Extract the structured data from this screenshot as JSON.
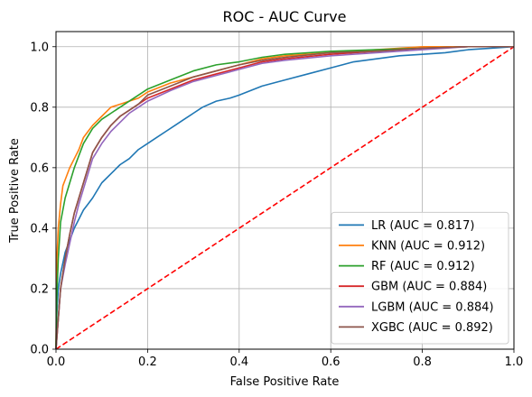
{
  "chart_data": {
    "type": "line",
    "title": "ROC - AUC Curve",
    "xlabel": "False Positive Rate",
    "ylabel": "True Positive Rate",
    "xlim": [
      0.0,
      1.0
    ],
    "ylim": [
      0.0,
      1.05
    ],
    "xticks": [
      0.0,
      0.2,
      0.4,
      0.6,
      0.8,
      1.0
    ],
    "yticks": [
      0.0,
      0.2,
      0.4,
      0.6,
      0.8,
      1.0
    ],
    "tick_labels_x": [
      "0.0",
      "0.2",
      "0.4",
      "0.6",
      "0.8",
      "1.0"
    ],
    "tick_labels_y": [
      "0.0",
      "0.2",
      "0.4",
      "0.6",
      "0.8",
      "1.0"
    ],
    "grid": true,
    "legend_position": "lower-right",
    "diagonal": {
      "color": "#ff0000",
      "style": "dashed",
      "x": [
        0,
        1
      ],
      "y": [
        0,
        1
      ]
    },
    "series": [
      {
        "name": "LR (AUC = 0.817)",
        "color": "#1f77b4",
        "x": [
          0,
          0.002,
          0.005,
          0.01,
          0.02,
          0.03,
          0.04,
          0.05,
          0.06,
          0.07,
          0.08,
          0.1,
          0.12,
          0.14,
          0.16,
          0.18,
          0.2,
          0.22,
          0.24,
          0.26,
          0.28,
          0.3,
          0.32,
          0.35,
          0.38,
          0.4,
          0.45,
          0.5,
          0.55,
          0.6,
          0.65,
          0.7,
          0.75,
          0.8,
          0.85,
          0.9,
          0.95,
          1.0
        ],
        "y": [
          0,
          0.12,
          0.2,
          0.25,
          0.32,
          0.36,
          0.4,
          0.43,
          0.46,
          0.48,
          0.5,
          0.55,
          0.58,
          0.61,
          0.63,
          0.66,
          0.68,
          0.7,
          0.72,
          0.74,
          0.76,
          0.78,
          0.8,
          0.82,
          0.83,
          0.84,
          0.87,
          0.89,
          0.91,
          0.93,
          0.95,
          0.96,
          0.97,
          0.975,
          0.98,
          0.99,
          0.995,
          1.0
        ]
      },
      {
        "name": "KNN (AUC = 0.912)",
        "color": "#ff7f0e",
        "x": [
          0,
          0.002,
          0.005,
          0.01,
          0.015,
          0.02,
          0.03,
          0.04,
          0.05,
          0.06,
          0.07,
          0.08,
          0.1,
          0.12,
          0.14,
          0.16,
          0.18,
          0.2,
          0.25,
          0.3,
          0.35,
          0.4,
          0.45,
          0.5,
          0.6,
          0.7,
          0.8,
          0.9,
          1.0
        ],
        "y": [
          0,
          0.3,
          0.4,
          0.48,
          0.54,
          0.56,
          0.6,
          0.63,
          0.66,
          0.7,
          0.72,
          0.74,
          0.77,
          0.8,
          0.81,
          0.82,
          0.83,
          0.85,
          0.88,
          0.9,
          0.92,
          0.94,
          0.96,
          0.97,
          0.98,
          0.99,
          1.0,
          1.0,
          1.0
        ]
      },
      {
        "name": "RF (AUC = 0.912)",
        "color": "#2ca02c",
        "x": [
          0,
          0.002,
          0.005,
          0.01,
          0.02,
          0.03,
          0.04,
          0.05,
          0.06,
          0.08,
          0.1,
          0.12,
          0.14,
          0.16,
          0.18,
          0.2,
          0.25,
          0.3,
          0.35,
          0.4,
          0.45,
          0.5,
          0.6,
          0.7,
          0.8,
          0.9,
          1.0
        ],
        "y": [
          0,
          0.18,
          0.3,
          0.42,
          0.5,
          0.55,
          0.6,
          0.64,
          0.68,
          0.73,
          0.76,
          0.78,
          0.8,
          0.82,
          0.84,
          0.86,
          0.89,
          0.92,
          0.94,
          0.95,
          0.965,
          0.975,
          0.985,
          0.99,
          0.995,
          1.0,
          1.0
        ]
      },
      {
        "name": "GBM (AUC = 0.884)",
        "color": "#d62728",
        "x": [
          0,
          0.005,
          0.01,
          0.02,
          0.03,
          0.04,
          0.05,
          0.06,
          0.07,
          0.08,
          0.1,
          0.12,
          0.14,
          0.16,
          0.18,
          0.2,
          0.25,
          0.3,
          0.35,
          0.4,
          0.45,
          0.5,
          0.6,
          0.7,
          0.8,
          0.9,
          1.0
        ],
        "y": [
          0,
          0.1,
          0.2,
          0.3,
          0.38,
          0.45,
          0.5,
          0.55,
          0.6,
          0.65,
          0.7,
          0.74,
          0.77,
          0.79,
          0.81,
          0.83,
          0.86,
          0.89,
          0.91,
          0.93,
          0.95,
          0.96,
          0.975,
          0.985,
          0.995,
          1.0,
          1.0
        ]
      },
      {
        "name": "LGBM (AUC = 0.884)",
        "color": "#9467bd",
        "x": [
          0,
          0.005,
          0.01,
          0.02,
          0.03,
          0.04,
          0.05,
          0.06,
          0.07,
          0.08,
          0.1,
          0.12,
          0.14,
          0.16,
          0.18,
          0.2,
          0.25,
          0.3,
          0.35,
          0.4,
          0.45,
          0.5,
          0.6,
          0.7,
          0.8,
          0.9,
          1.0
        ],
        "y": [
          0,
          0.1,
          0.2,
          0.28,
          0.35,
          0.42,
          0.48,
          0.53,
          0.58,
          0.63,
          0.68,
          0.72,
          0.75,
          0.78,
          0.8,
          0.82,
          0.855,
          0.885,
          0.905,
          0.925,
          0.945,
          0.955,
          0.97,
          0.98,
          0.99,
          1.0,
          1.0
        ]
      },
      {
        "name": "XGBC (AUC = 0.892)",
        "color": "#8c564b",
        "x": [
          0,
          0.005,
          0.01,
          0.02,
          0.03,
          0.04,
          0.05,
          0.06,
          0.07,
          0.08,
          0.1,
          0.12,
          0.14,
          0.16,
          0.18,
          0.2,
          0.25,
          0.3,
          0.35,
          0.4,
          0.45,
          0.5,
          0.6,
          0.7,
          0.8,
          0.9,
          1.0
        ],
        "y": [
          0,
          0.1,
          0.2,
          0.3,
          0.38,
          0.45,
          0.5,
          0.55,
          0.6,
          0.65,
          0.7,
          0.74,
          0.77,
          0.79,
          0.81,
          0.84,
          0.87,
          0.9,
          0.92,
          0.94,
          0.955,
          0.965,
          0.98,
          0.985,
          0.995,
          1.0,
          1.0
        ]
      }
    ]
  }
}
